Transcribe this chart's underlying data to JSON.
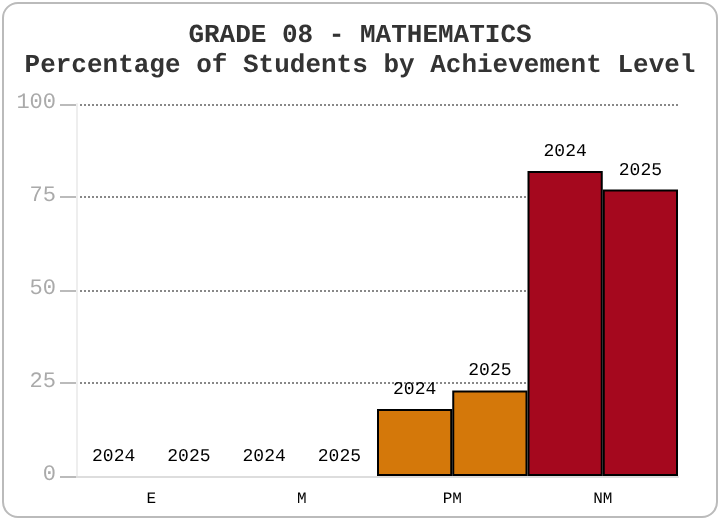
{
  "chart_data": {
    "type": "bar",
    "title": "GRADE 08 - MATHEMATICS",
    "subtitle": "Percentage of Students by Achievement Level",
    "categories": [
      "E",
      "M",
      "PM",
      "NM"
    ],
    "series": [
      {
        "name": "2024",
        "colors": [
          null,
          null,
          "#d4780a",
          "#a5081e"
        ],
        "values": [
          0,
          0,
          18,
          82
        ]
      },
      {
        "name": "2025",
        "colors": [
          null,
          null,
          "#d4780a",
          "#a5081e"
        ],
        "values": [
          0,
          0,
          23,
          77
        ]
      }
    ],
    "ylim": [
      0,
      100
    ],
    "yticks": [
      0,
      25,
      50,
      75,
      100
    ],
    "grid": "y",
    "legend": false
  }
}
